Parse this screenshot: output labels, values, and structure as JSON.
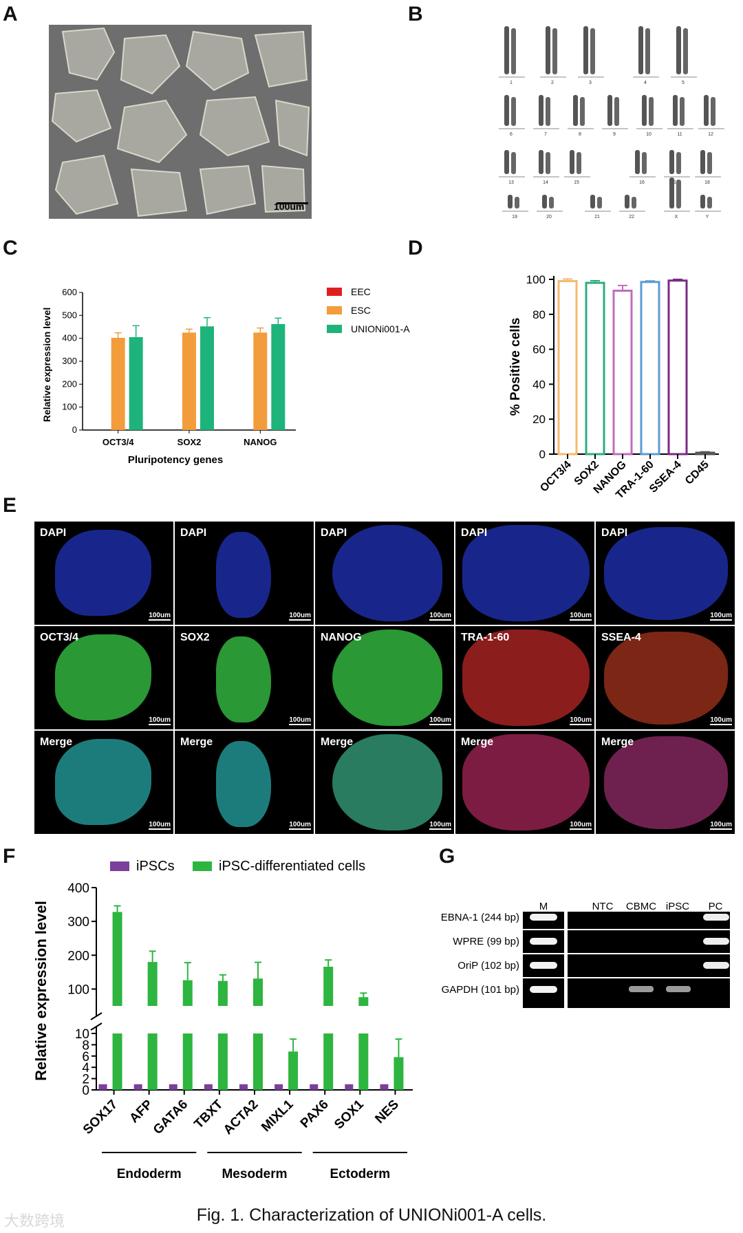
{
  "panels": {
    "a": "A",
    "b": "B",
    "c": "C",
    "d": "D",
    "e": "E",
    "f": "F",
    "g": "G"
  },
  "panel_a": {
    "scale_bar": "100um"
  },
  "panel_b": {
    "chromosome_labels": [
      "1",
      "2",
      "3",
      "4",
      "5",
      "6",
      "7",
      "8",
      "9",
      "10",
      "11",
      "12",
      "13",
      "14",
      "15",
      "16",
      "17",
      "18",
      "19",
      "20",
      "21",
      "22",
      "X",
      "Y"
    ]
  },
  "panel_e": {
    "rows": [
      [
        "DAPI",
        "DAPI",
        "DAPI",
        "DAPI",
        "DAPI"
      ],
      [
        "OCT3/4",
        "SOX2",
        "NANOG",
        "TRA-1-60",
        "SSEA-4"
      ],
      [
        "Merge",
        "Merge",
        "Merge",
        "Merge",
        "Merge"
      ]
    ],
    "scale_bar": "100um",
    "colors": {
      "dapi": "#2233cc",
      "green": "#33cc44",
      "red": "#cc2222",
      "merge_green": "#22aa88",
      "merge_red": "#aa2266"
    }
  },
  "panel_g": {
    "lane_labels": [
      "M",
      "NTC",
      "CBMC",
      "iPSC",
      "PC"
    ],
    "row_labels": [
      "EBNA-1 (244 bp)",
      "WPRE (99 bp)",
      "OriP (102 bp)",
      "GAPDH (101 bp)"
    ]
  },
  "caption": "Fig. 1. Characterization of UNIONi001-A cells.",
  "watermark": "大数跨境",
  "chart_data": [
    {
      "id": "C",
      "type": "bar",
      "categories": [
        "OCT3/4",
        "SOX2",
        "NANOG"
      ],
      "series": [
        {
          "name": "EEC",
          "values": [
            0,
            0,
            0
          ],
          "errors": [
            0,
            0,
            0
          ],
          "color": "#e02020"
        },
        {
          "name": "ESC",
          "values": [
            402,
            425,
            425
          ],
          "errors": [
            22,
            15,
            20
          ],
          "color": "#f39c3c"
        },
        {
          "name": "UNIONi001-A",
          "values": [
            405,
            452,
            462
          ],
          "errors": [
            50,
            38,
            26
          ],
          "color": "#1db37a"
        }
      ],
      "title": "",
      "xlabel": "Pluripotency genes",
      "ylabel": "Relative expression level",
      "ylim": [
        0,
        600
      ],
      "yticks": [
        "0",
        "100",
        "200",
        "300",
        "400",
        "500",
        "600"
      ],
      "legend": "right"
    },
    {
      "id": "D",
      "type": "bar",
      "categories": [
        "OCT3/4",
        "SOX2",
        "NANOG",
        "TRA-1-60",
        "SSEA-4",
        "CD45"
      ],
      "values": [
        99,
        98,
        93.5,
        98.5,
        99.3,
        0.8
      ],
      "errors": [
        1.2,
        1.2,
        3,
        0.6,
        0.7,
        0.5
      ],
      "colors": [
        "#f5b971",
        "#2fad7c",
        "#c06bbf",
        "#5b9bd5",
        "#7b2a86",
        "#555555"
      ],
      "ylabel": "% Positive cells",
      "ylim": [
        0,
        100
      ],
      "yticks": [
        "0",
        "20",
        "40",
        "60",
        "80",
        "100"
      ]
    },
    {
      "id": "F",
      "type": "bar",
      "categories": [
        "SOX17",
        "AFP",
        "GATA6",
        "TBXT",
        "ACTA2",
        "MIXL1",
        "PAX6",
        "SOX1",
        "NES"
      ],
      "groups": [
        "Endoderm",
        "Mesoderm",
        "Ectoderm"
      ],
      "series": [
        {
          "name": "iPSCs",
          "values": [
            1,
            1,
            1,
            1,
            1,
            1,
            1,
            1,
            1
          ],
          "color": "#7c3f9a"
        },
        {
          "name": "iPSC-differentiated cells",
          "values": [
            328,
            180,
            126,
            124,
            131,
            6.8,
            166,
            76,
            5.8
          ],
          "errors": [
            18,
            32,
            52,
            18,
            48,
            2.2,
            20,
            12,
            3.2
          ],
          "color": "#2db540"
        }
      ],
      "ylabel": "Relative expression level",
      "yticks_lower": [
        "0",
        "2",
        "4",
        "6",
        "8",
        "10"
      ],
      "yticks_upper": [
        "100",
        "200",
        "300",
        "400"
      ],
      "ylim_lower": [
        0,
        10
      ],
      "ylim_upper": [
        50,
        400
      ]
    }
  ]
}
